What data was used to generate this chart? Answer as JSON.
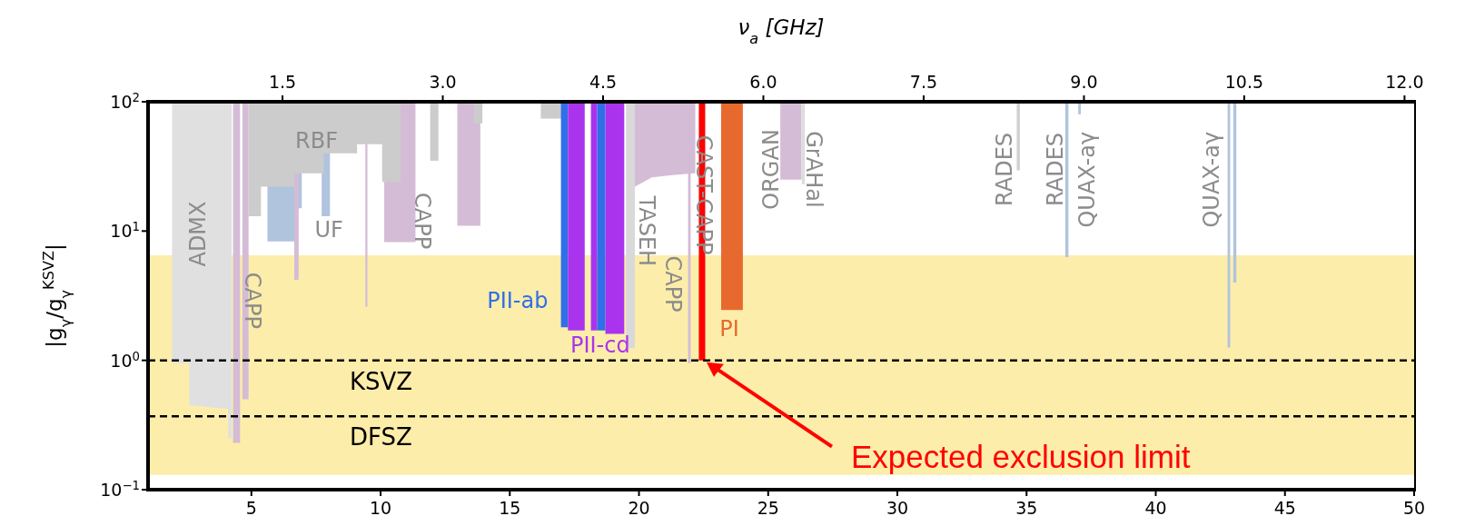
{
  "chart_data": {
    "type": "area",
    "x2label": "ν$_{a}$ [GHz]",
    "ylabel": "|g$_{γ}$/g$_{γ}$$^{KSVZ}$|",
    "log": "y",
    "grid": false,
    "legend": false,
    "xlim": [
      1,
      50
    ],
    "xticks": [
      5,
      10,
      15,
      20,
      25,
      30,
      35,
      40,
      45,
      50
    ],
    "x2lim": [
      0.2418,
      12.09
    ],
    "x2ticks": [
      1.5,
      {
        "value": 3,
        "label": "3.0"
      },
      4.5,
      {
        "value": 6,
        "label": "6.0"
      },
      7.5,
      {
        "value": 9,
        "label": "9.0"
      },
      10.5,
      {
        "value": 12,
        "label": "12.0"
      }
    ],
    "ylim": [
      0.1,
      100
    ],
    "yticks": [
      {
        "value": 0.1,
        "label": "10$^{−1}$"
      },
      {
        "value": 1,
        "label": "10$^{0}$"
      },
      {
        "value": 10,
        "label": "10$^{1}$"
      },
      {
        "value": 100,
        "label": "10$^{2}$"
      }
    ],
    "bands": [
      {
        "axis": "y",
        "from": 0.13,
        "to": 6.5,
        "color": "#fcedaa"
      }
    ],
    "ref_lines": [
      {
        "axis": "y",
        "value": 1,
        "label": "KSVZ",
        "color": "#000000",
        "line_style": "dashed"
      },
      {
        "axis": "y",
        "value": 0.37,
        "label": "DFSZ",
        "color": "#000000",
        "line_style": "dashed"
      }
    ],
    "series": [
      {
        "color": "#b0c4de",
        "x": [
          5.62,
          5.62,
          6.66,
          6.66,
          6.95,
          6.95
        ],
        "values": [
          100,
          8.3,
          8.3,
          15,
          15,
          100
        ]
      },
      {
        "color": "#b0c4de",
        "x": [
          7.72,
          7.72,
          8.04,
          8.04
        ],
        "values": [
          100,
          13,
          13,
          100
        ]
      },
      {
        "color": "#d4bcd6",
        "x": [
          4.29,
          4.29,
          4.56,
          4.56,
          4.65,
          4.65,
          4.89,
          4.89
        ],
        "values": [
          100,
          0.23,
          0.23,
          100,
          100,
          0.5,
          0.5,
          100
        ]
      },
      {
        "color": "#d4bcd6",
        "x": [
          6.66,
          6.66,
          6.83,
          6.83
        ],
        "values": [
          100,
          4.2,
          4.2,
          100
        ]
      },
      {
        "color": "#d4bcd6",
        "x": [
          9.41,
          9.41,
          9.49,
          9.49
        ],
        "values": [
          100,
          2.6,
          2.6,
          100
        ]
      },
      {
        "color": "#d4bcd6",
        "x": [
          10.14,
          10.14,
          11.35,
          11.35
        ],
        "values": [
          100,
          8.2,
          8.2,
          100
        ]
      },
      {
        "color": "#d4bcd6",
        "x": [
          12.97,
          12.97,
          13.86,
          13.86
        ],
        "values": [
          100,
          11,
          11,
          100
        ]
      },
      {
        "color": "#e0e0e0",
        "x": [
          1.93,
          1.93,
          2.6,
          2.6,
          4.1,
          4.1,
          4.24,
          4.24
        ],
        "values": [
          100,
          0.95,
          0.95,
          0.45,
          0.42,
          0.25,
          0.25,
          100
        ]
      },
      {
        "color": "#cccccc",
        "x": [
          4.89,
          4.89,
          5.37,
          5.37,
          6.66,
          6.66,
          7.8,
          7.8,
          9.09,
          9.09,
          10.06,
          10.06,
          10.78,
          10.78
        ],
        "values": [
          100,
          13,
          13,
          22,
          22,
          28,
          28,
          40,
          40,
          47,
          47,
          24,
          24,
          100
        ]
      },
      {
        "color": "#cccccc",
        "x": [
          11.92,
          11.92,
          12.24,
          12.24
        ],
        "values": [
          100,
          35,
          35,
          100
        ]
      },
      {
        "color": "#cccccc",
        "x": [
          13.61,
          13.61,
          13.94,
          13.94
        ],
        "values": [
          100,
          68,
          68,
          100
        ]
      },
      {
        "color": "#cccccc",
        "x": [
          16.2,
          16.2,
          17.0,
          17.0
        ],
        "values": [
          100,
          74,
          74,
          100
        ]
      },
      {
        "color": "#d9d9d9",
        "x": [
          19.5,
          19.5,
          19.84,
          19.84
        ],
        "values": [
          100,
          1.24,
          1.24,
          100
        ]
      },
      {
        "color": "#d4bcd6",
        "x": [
          19.84,
          19.84,
          20.5,
          21.2,
          22.18,
          22.18
        ],
        "values": [
          100,
          22,
          26,
          27,
          28,
          100
        ]
      },
      {
        "color": "#d4bcd6",
        "x": [
          21.9,
          21.9,
          22.0,
          22.0
        ],
        "values": [
          100,
          0.95,
          0.95,
          100
        ]
      },
      {
        "color": "#2f6fe8",
        "x": [
          16.98,
          16.98,
          17.25,
          17.25
        ],
        "values": [
          100,
          1.8,
          1.8,
          100
        ]
      },
      {
        "color": "#aa33ee",
        "x": [
          17.25,
          17.25,
          17.9,
          17.9
        ],
        "values": [
          100,
          1.7,
          1.7,
          100
        ]
      },
      {
        "color": "#aa33ee",
        "x": [
          18.14,
          18.14,
          18.38,
          18.38
        ],
        "values": [
          100,
          1.7,
          1.7,
          100
        ]
      },
      {
        "color": "#2f6fe8",
        "x": [
          18.38,
          18.38,
          18.7,
          18.7
        ],
        "values": [
          100,
          1.7,
          1.7,
          100
        ]
      },
      {
        "color": "#aa33ee",
        "x": [
          18.7,
          18.7,
          19.43,
          19.43
        ],
        "values": [
          100,
          1.6,
          1.6,
          100
        ]
      },
      {
        "color": "#e8692e",
        "x": [
          23.18,
          23.18,
          24.02,
          24.02
        ],
        "values": [
          100,
          2.45,
          2.45,
          100
        ]
      },
      {
        "color": "#d4bcd6",
        "x": [
          25.47,
          25.47,
          26.29,
          26.29
        ],
        "values": [
          100,
          25,
          25,
          100
        ]
      },
      {
        "color": "#dddddd",
        "x": [
          26.3,
          26.3,
          26.42,
          26.42
        ],
        "values": [
          100,
          23,
          23,
          100
        ]
      },
      {
        "color": "#d0d0d0",
        "x": [
          34.62,
          34.62,
          34.74,
          34.74
        ],
        "values": [
          100,
          29.5,
          29.5,
          100
        ]
      },
      {
        "color": "#b0c4de",
        "x": [
          36.5,
          36.5,
          36.62,
          36.62
        ],
        "values": [
          100,
          6.3,
          6.3,
          100
        ]
      },
      {
        "color": "#b0c4de",
        "x": [
          37.0,
          37.0,
          37.1,
          37.1
        ],
        "values": [
          100,
          80,
          80,
          100
        ]
      },
      {
        "color": "#b0c4de",
        "x": [
          42.78,
          42.78,
          42.88,
          42.88
        ],
        "values": [
          100,
          1.26,
          1.26,
          100
        ]
      },
      {
        "color": "#b0c4de",
        "x": [
          43.0,
          43.0,
          43.12,
          43.12
        ],
        "values": [
          100,
          4.0,
          4.0,
          100
        ]
      },
      {
        "type": "line",
        "color": "#ff0000",
        "x": [
          22.44,
          22.44
        ],
        "values": [
          1,
          100
        ]
      }
    ],
    "annotations": [
      "ADMX",
      "CAPP",
      "RBF",
      "UF",
      "CAPP",
      "PII-ab",
      "PII-cd",
      "TASEH",
      "CAPP",
      "CAST-CAPP",
      "PI",
      "ORGAN",
      "GrAHal",
      "RADES",
      "RADES",
      "QUAX-aγ",
      "QUAX-aγ",
      "Expected exclusion limit"
    ]
  }
}
